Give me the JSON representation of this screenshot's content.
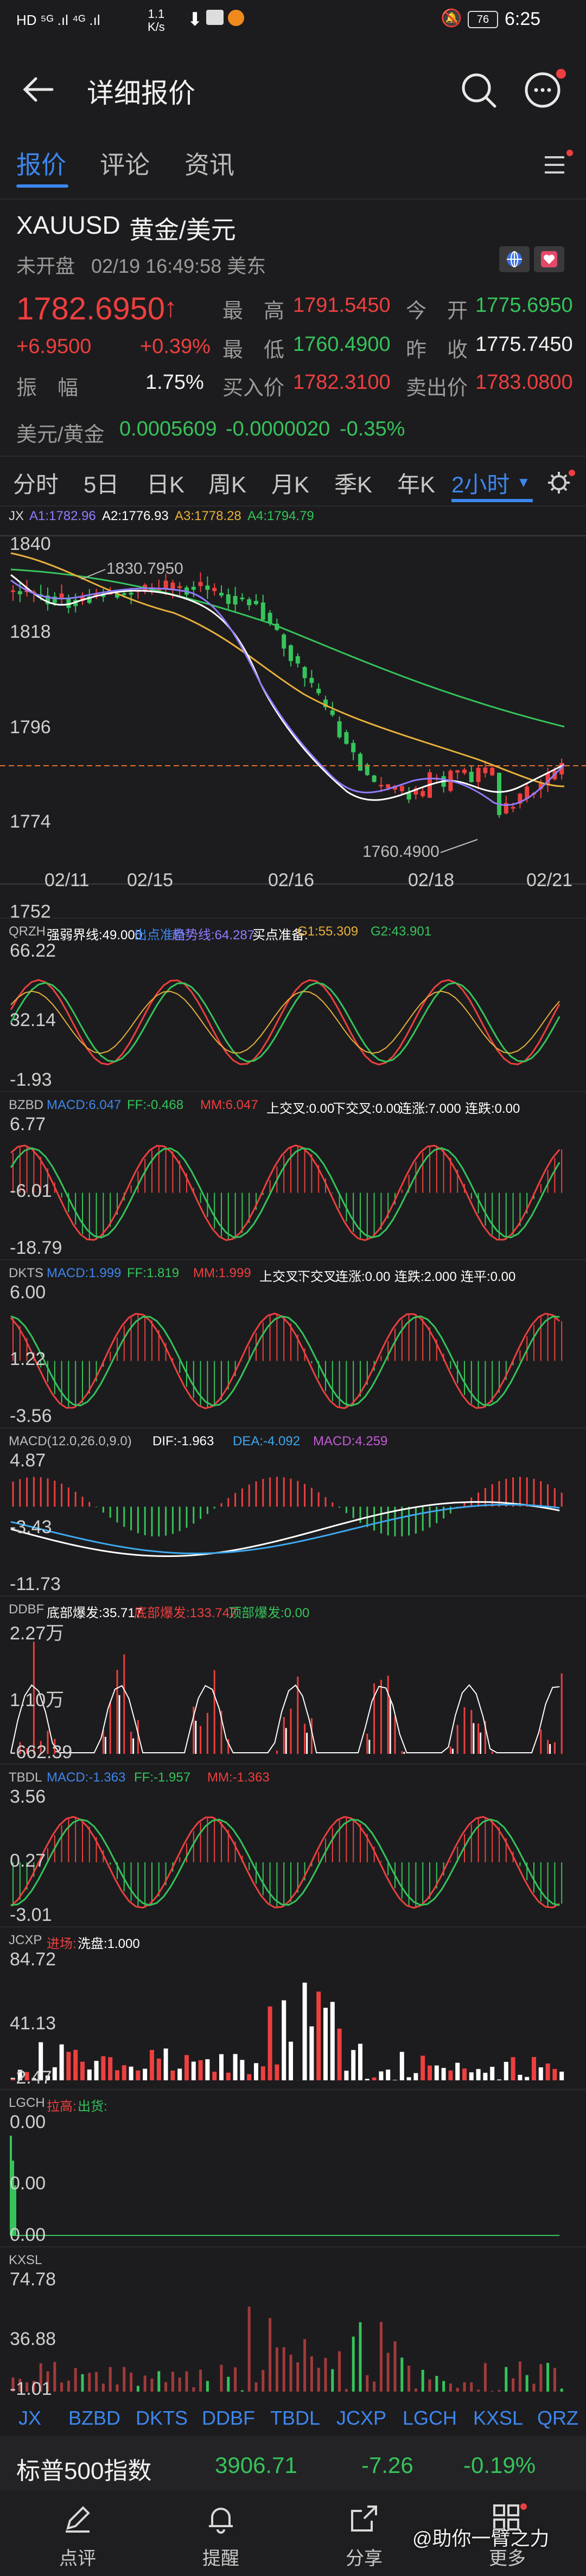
{
  "status_bar": {
    "left_badges": "HD ⁵ᴳ .ıl ⁴ᴳ .ıl",
    "net_speed": "1.1\nK/s",
    "battery": "76",
    "time": "6:25"
  },
  "header": {
    "title": "详细报价"
  },
  "main_tabs": [
    {
      "label": "报价"
    },
    {
      "label": "评论"
    },
    {
      "label": "资讯"
    }
  ],
  "quote": {
    "symbol": "XAUUSD",
    "name": "黄金/美元",
    "market_status": "未开盘",
    "datetime": "02/19 16:49:58 美东",
    "price": "1782.6950",
    "change": "+6.9500",
    "change_pct": "+0.39%",
    "amplitude_label": "振　幅",
    "amplitude": "1.75%",
    "high_label": "最　高",
    "high": "1791.5450",
    "low_label": "最　低",
    "low": "1760.4900",
    "bid_label": "买入价",
    "bid": "1782.3100",
    "open_label": "今　开",
    "open": "1775.6950",
    "prev_close_label": "昨　收",
    "prev_close": "1775.7450",
    "ask_label": "卖出价",
    "ask": "1783.0800",
    "cross_label": "美元/黄金",
    "cross_price": "0.0005609",
    "cross_change": "-0.0000020",
    "cross_pct": "-0.35%"
  },
  "period_tabs": [
    {
      "label": "分时"
    },
    {
      "label": "5日"
    },
    {
      "label": "日K"
    },
    {
      "label": "周K"
    },
    {
      "label": "月K"
    },
    {
      "label": "季K"
    },
    {
      "label": "年K"
    },
    {
      "label": "2小时"
    }
  ],
  "main_chart": {
    "legend": [
      {
        "text": "JX",
        "color": "#bdbdbd"
      },
      {
        "text": "A1:1782.96",
        "color": "#8f7cff"
      },
      {
        "text": "A2:1776.93",
        "color": "#ffffff"
      },
      {
        "text": "A3:1778.28",
        "color": "#e8b03a"
      },
      {
        "text": "A4:1794.79",
        "color": "#35c45b"
      }
    ],
    "y_labels": [
      "1840",
      "1818",
      "1796",
      "1774",
      "1752"
    ],
    "x_labels": [
      "02/11",
      "02/15",
      "02/16",
      "02/18",
      "02/21"
    ],
    "max_annotation": "1830.7950",
    "min_annotation": "1760.4900"
  },
  "indicators": {
    "qrzh": {
      "legend": [
        {
          "text": "QRZH",
          "color": "#bdbdbd"
        },
        {
          "text": "强弱界线:49.000",
          "color": "#ffffff"
        },
        {
          "text": "出点准备",
          "color": "#3d86ee"
        },
        {
          "text": "趋势线:64.287",
          "color": "#8f7cff"
        },
        {
          "text": "买点准备:",
          "color": "#ffffff"
        },
        {
          "text": "G1:55.309",
          "color": "#e8b03a"
        },
        {
          "text": "G2:43.901",
          "color": "#35c45b"
        }
      ],
      "y_labels": [
        "66.22",
        "32.14",
        "-1.93"
      ]
    },
    "bzbd": {
      "legend": [
        {
          "text": "BZBD",
          "color": "#bdbdbd"
        },
        {
          "text": "MACD:6.047",
          "color": "#3d86ee"
        },
        {
          "text": "FF:-0.468",
          "color": "#35c45b"
        },
        {
          "text": "MM:6.047",
          "color": "#ee3f3f"
        },
        {
          "text": "上交叉:0.00",
          "color": "#ffffff"
        },
        {
          "text": "下交叉:0.00",
          "color": "#ffffff"
        },
        {
          "text": "连涨:7.000",
          "color": "#ffffff"
        },
        {
          "text": "连跌:0.00",
          "color": "#ffffff"
        }
      ],
      "y_labels": [
        "6.77",
        "-6.01",
        "-18.79"
      ]
    },
    "dkts": {
      "legend": [
        {
          "text": "DKTS",
          "color": "#bdbdbd"
        },
        {
          "text": "MACD:1.999",
          "color": "#3d86ee"
        },
        {
          "text": "FF:1.819",
          "color": "#35c45b"
        },
        {
          "text": "MM:1.999",
          "color": "#ee3f3f"
        },
        {
          "text": "上交叉:",
          "color": "#ffffff"
        },
        {
          "text": "下交叉:",
          "color": "#ffffff"
        },
        {
          "text": "连涨:0.00",
          "color": "#ffffff"
        },
        {
          "text": "连跌:2.000",
          "color": "#ffffff"
        },
        {
          "text": "连平:0.00",
          "color": "#ffffff"
        }
      ],
      "y_labels": [
        "6.00",
        "1.22",
        "-3.56"
      ]
    },
    "macd": {
      "legend": [
        {
          "text": "MACD(12.0,26.0,9.0)",
          "color": "#bdbdbd"
        },
        {
          "text": "DIF:-1.963",
          "color": "#ffffff"
        },
        {
          "text": "DEA:-4.092",
          "color": "#3da8ee"
        },
        {
          "text": "MACD:4.259",
          "color": "#c45bd8"
        }
      ],
      "y_labels": [
        "4.87",
        "-3.43",
        "-11.73"
      ]
    },
    "ddbf": {
      "legend": [
        {
          "text": "DDBF",
          "color": "#bdbdbd"
        },
        {
          "text": "底部爆发:35.717",
          "color": "#ffffff"
        },
        {
          "text": "底部爆发:133.747",
          "color": "#ee3f3f"
        },
        {
          "text": "顶部爆发:0.00",
          "color": "#35c45b"
        }
      ],
      "y_labels": [
        "2.27万",
        "1.10万",
        "-662.39"
      ]
    },
    "tbdl": {
      "legend": [
        {
          "text": "TBDL",
          "color": "#bdbdbd"
        },
        {
          "text": "MACD:-1.363",
          "color": "#3d86ee"
        },
        {
          "text": "FF:-1.957",
          "color": "#35c45b"
        },
        {
          "text": "MM:-1.363",
          "color": "#ee3f3f"
        }
      ],
      "y_labels": [
        "3.56",
        "0.27",
        "-3.01"
      ]
    },
    "jcxp": {
      "legend": [
        {
          "text": "JCXP",
          "color": "#bdbdbd"
        },
        {
          "text": "进场:",
          "color": "#ee3f3f"
        },
        {
          "text": "洗盘:1.000",
          "color": "#ffffff"
        }
      ],
      "y_labels": [
        "84.72",
        "41.13",
        "-2.47"
      ]
    },
    "lgch": {
      "legend": [
        {
          "text": "LGCH",
          "color": "#bdbdbd"
        },
        {
          "text": "拉高:",
          "color": "#ee3f3f"
        },
        {
          "text": "出货:",
          "color": "#35c45b"
        }
      ],
      "y_labels": [
        "0.00",
        "0.00",
        "0.00"
      ]
    },
    "kxsl": {
      "legend": [
        {
          "text": "KXSL",
          "color": "#bdbdbd"
        }
      ],
      "y_labels": [
        "74.78",
        "36.88",
        "-1.01"
      ]
    }
  },
  "indicator_tabs": [
    {
      "label": "JX"
    },
    {
      "label": "BZBD"
    },
    {
      "label": "DKTS"
    },
    {
      "label": "DDBF"
    },
    {
      "label": "TBDL"
    },
    {
      "label": "JCXP"
    },
    {
      "label": "LGCH"
    },
    {
      "label": "KXSL"
    },
    {
      "label": "QRZ"
    }
  ],
  "index_bar": {
    "name": "标普500指数",
    "value": "3906.71",
    "change": "-7.26",
    "change_pct": "-0.19%"
  },
  "bottom_nav": [
    {
      "label": "点评"
    },
    {
      "label": "提醒"
    },
    {
      "label": "分享"
    },
    {
      "label": "更多"
    }
  ],
  "watermark": "@助你一臂之力",
  "colors": {
    "up": "#ee3f3f",
    "down": "#35c45b",
    "accent": "#3d86ee",
    "background": "#1c1c1e"
  }
}
